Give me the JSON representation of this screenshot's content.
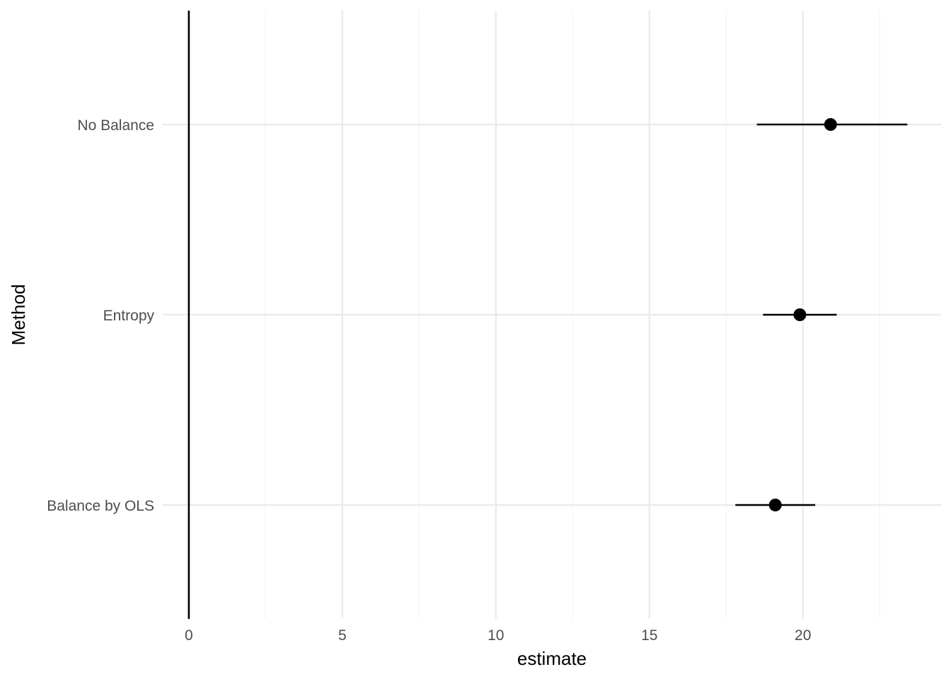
{
  "chart_data": {
    "type": "scatter",
    "title": "",
    "xlabel": "estimate",
    "ylabel": "Method",
    "xlim": [
      -0.85,
      24.5
    ],
    "x_ticks": [
      0,
      5,
      10,
      15,
      20
    ],
    "x_tick_labels": [
      "0",
      "5",
      "10",
      "15",
      "20"
    ],
    "x_minor_ticks": [
      2.5,
      7.5,
      12.5,
      17.5,
      22.5
    ],
    "categories": [
      "No Balance",
      "Entropy",
      "Balance by OLS"
    ],
    "estimates": [
      20.9,
      19.9,
      19.1
    ],
    "ci_low": [
      18.5,
      18.7,
      17.8
    ],
    "ci_high": [
      23.4,
      21.1,
      20.4
    ],
    "reference_line_x": 0,
    "grid": true,
    "legend": "none",
    "colors": {
      "points": "#000000",
      "reference_line": "#000000",
      "major_grid": "#ebebeb",
      "minor_grid": "#f2f2f2"
    }
  }
}
